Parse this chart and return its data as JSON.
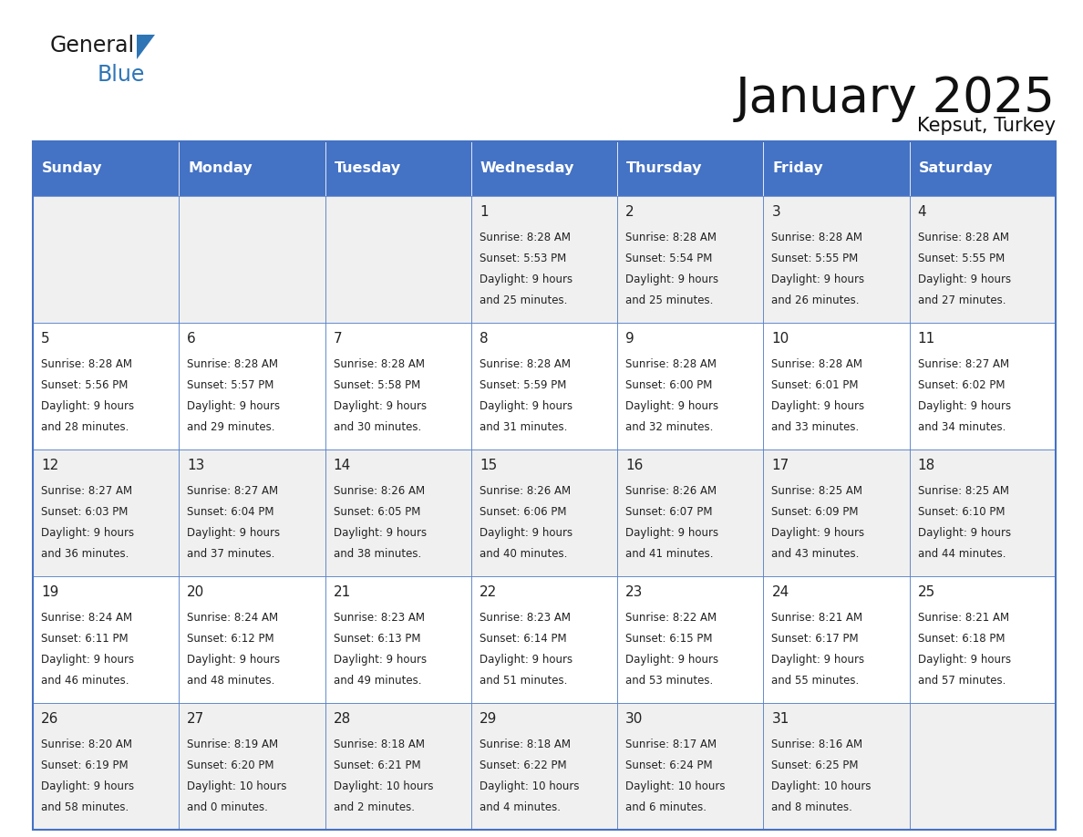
{
  "title": "January 2025",
  "subtitle": "Kepsut, Turkey",
  "days_of_week": [
    "Sunday",
    "Monday",
    "Tuesday",
    "Wednesday",
    "Thursday",
    "Friday",
    "Saturday"
  ],
  "header_bg": "#4472C4",
  "header_text": "#FFFFFF",
  "cell_bg_light": "#F0F0F0",
  "cell_bg_white": "#FFFFFF",
  "border_color": "#4472C4",
  "day_num_color": "#222222",
  "cell_text_color": "#222222",
  "logo_black": "#1a1a1a",
  "logo_blue": "#2E75B6",
  "triangle_color": "#2E75B6",
  "calendar_data": [
    [
      {
        "day": "",
        "sunrise": "",
        "sunset": "",
        "daylight": ""
      },
      {
        "day": "",
        "sunrise": "",
        "sunset": "",
        "daylight": ""
      },
      {
        "day": "",
        "sunrise": "",
        "sunset": "",
        "daylight": ""
      },
      {
        "day": "1",
        "sunrise": "8:28 AM",
        "sunset": "5:53 PM",
        "daylight": "9 hours and 25 minutes."
      },
      {
        "day": "2",
        "sunrise": "8:28 AM",
        "sunset": "5:54 PM",
        "daylight": "9 hours and 25 minutes."
      },
      {
        "day": "3",
        "sunrise": "8:28 AM",
        "sunset": "5:55 PM",
        "daylight": "9 hours and 26 minutes."
      },
      {
        "day": "4",
        "sunrise": "8:28 AM",
        "sunset": "5:55 PM",
        "daylight": "9 hours and 27 minutes."
      }
    ],
    [
      {
        "day": "5",
        "sunrise": "8:28 AM",
        "sunset": "5:56 PM",
        "daylight": "9 hours and 28 minutes."
      },
      {
        "day": "6",
        "sunrise": "8:28 AM",
        "sunset": "5:57 PM",
        "daylight": "9 hours and 29 minutes."
      },
      {
        "day": "7",
        "sunrise": "8:28 AM",
        "sunset": "5:58 PM",
        "daylight": "9 hours and 30 minutes."
      },
      {
        "day": "8",
        "sunrise": "8:28 AM",
        "sunset": "5:59 PM",
        "daylight": "9 hours and 31 minutes."
      },
      {
        "day": "9",
        "sunrise": "8:28 AM",
        "sunset": "6:00 PM",
        "daylight": "9 hours and 32 minutes."
      },
      {
        "day": "10",
        "sunrise": "8:28 AM",
        "sunset": "6:01 PM",
        "daylight": "9 hours and 33 minutes."
      },
      {
        "day": "11",
        "sunrise": "8:27 AM",
        "sunset": "6:02 PM",
        "daylight": "9 hours and 34 minutes."
      }
    ],
    [
      {
        "day": "12",
        "sunrise": "8:27 AM",
        "sunset": "6:03 PM",
        "daylight": "9 hours and 36 minutes."
      },
      {
        "day": "13",
        "sunrise": "8:27 AM",
        "sunset": "6:04 PM",
        "daylight": "9 hours and 37 minutes."
      },
      {
        "day": "14",
        "sunrise": "8:26 AM",
        "sunset": "6:05 PM",
        "daylight": "9 hours and 38 minutes."
      },
      {
        "day": "15",
        "sunrise": "8:26 AM",
        "sunset": "6:06 PM",
        "daylight": "9 hours and 40 minutes."
      },
      {
        "day": "16",
        "sunrise": "8:26 AM",
        "sunset": "6:07 PM",
        "daylight": "9 hours and 41 minutes."
      },
      {
        "day": "17",
        "sunrise": "8:25 AM",
        "sunset": "6:09 PM",
        "daylight": "9 hours and 43 minutes."
      },
      {
        "day": "18",
        "sunrise": "8:25 AM",
        "sunset": "6:10 PM",
        "daylight": "9 hours and 44 minutes."
      }
    ],
    [
      {
        "day": "19",
        "sunrise": "8:24 AM",
        "sunset": "6:11 PM",
        "daylight": "9 hours and 46 minutes."
      },
      {
        "day": "20",
        "sunrise": "8:24 AM",
        "sunset": "6:12 PM",
        "daylight": "9 hours and 48 minutes."
      },
      {
        "day": "21",
        "sunrise": "8:23 AM",
        "sunset": "6:13 PM",
        "daylight": "9 hours and 49 minutes."
      },
      {
        "day": "22",
        "sunrise": "8:23 AM",
        "sunset": "6:14 PM",
        "daylight": "9 hours and 51 minutes."
      },
      {
        "day": "23",
        "sunrise": "8:22 AM",
        "sunset": "6:15 PM",
        "daylight": "9 hours and 53 minutes."
      },
      {
        "day": "24",
        "sunrise": "8:21 AM",
        "sunset": "6:17 PM",
        "daylight": "9 hours and 55 minutes."
      },
      {
        "day": "25",
        "sunrise": "8:21 AM",
        "sunset": "6:18 PM",
        "daylight": "9 hours and 57 minutes."
      }
    ],
    [
      {
        "day": "26",
        "sunrise": "8:20 AM",
        "sunset": "6:19 PM",
        "daylight": "9 hours and 58 minutes."
      },
      {
        "day": "27",
        "sunrise": "8:19 AM",
        "sunset": "6:20 PM",
        "daylight": "10 hours and 0 minutes."
      },
      {
        "day": "28",
        "sunrise": "8:18 AM",
        "sunset": "6:21 PM",
        "daylight": "10 hours and 2 minutes."
      },
      {
        "day": "29",
        "sunrise": "8:18 AM",
        "sunset": "6:22 PM",
        "daylight": "10 hours and 4 minutes."
      },
      {
        "day": "30",
        "sunrise": "8:17 AM",
        "sunset": "6:24 PM",
        "daylight": "10 hours and 6 minutes."
      },
      {
        "day": "31",
        "sunrise": "8:16 AM",
        "sunset": "6:25 PM",
        "daylight": "10 hours and 8 minutes."
      },
      {
        "day": "",
        "sunrise": "",
        "sunset": "",
        "daylight": ""
      }
    ]
  ]
}
